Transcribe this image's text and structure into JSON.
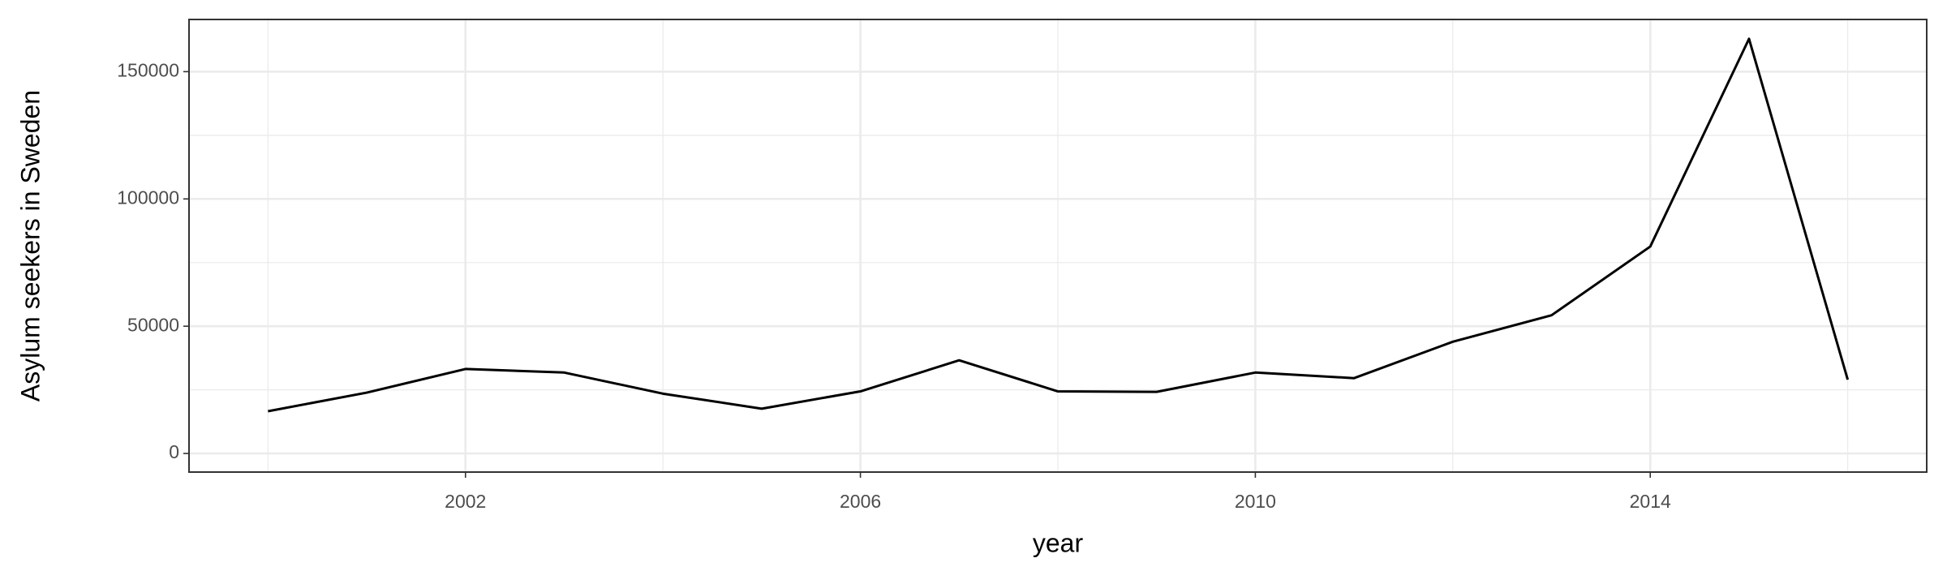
{
  "chart_data": {
    "type": "line",
    "x": [
      2000,
      2001,
      2002,
      2003,
      2004,
      2005,
      2006,
      2007,
      2008,
      2009,
      2010,
      2011,
      2012,
      2013,
      2014,
      2015,
      2016
    ],
    "series": [
      {
        "name": "Asylum seekers in Sweden",
        "color": "#000000",
        "values": [
          16600,
          23900,
          33200,
          31800,
          23500,
          17600,
          24400,
          36600,
          24400,
          24200,
          31800,
          29600,
          43900,
          54300,
          81300,
          162900,
          29000
        ]
      }
    ],
    "xlabel": "year",
    "ylabel": "Asylum seekers in Sweden",
    "xlim": [
      1999.2,
      2016.8
    ],
    "ylim": [
      -7300,
      170500
    ],
    "xticks": [
      2002,
      2006,
      2010,
      2014
    ],
    "yticks": [
      0,
      50000,
      100000,
      150000
    ],
    "grid": true
  }
}
